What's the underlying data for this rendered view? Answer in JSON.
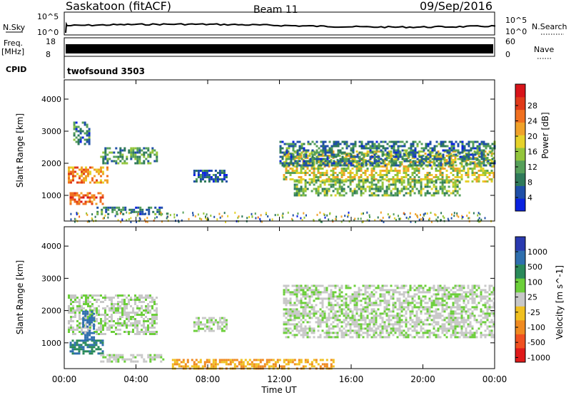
{
  "header": {
    "station": "Saskatoon (fitACF)",
    "beam": "Beam 11",
    "date": "09/Sep/2016"
  },
  "noise_panel": {
    "left_label": "N.Sky",
    "right_label": "N.Search",
    "left_ticks": [
      "10^5",
      "10^0"
    ],
    "right_ticks": [
      "10^5",
      "10^0"
    ]
  },
  "freq_panel": {
    "left_label_1": "Freq.",
    "left_label_2": "[MHz]",
    "right_label": "Nave",
    "left_ticks": [
      "18",
      "8"
    ],
    "right_ticks": [
      "60",
      "0"
    ]
  },
  "cpid_panel": {
    "label": "CPID",
    "program": "twofsound 3503"
  },
  "power_panel": {
    "ylabel": "Slant Range [km]",
    "colorbar_label": "Power [dB]",
    "colorbar_ticks": [
      "28",
      "24",
      "20",
      "16",
      "12",
      "8",
      "4"
    ],
    "colorbar_colors": [
      "#0a22e0",
      "#1f4fa8",
      "#2f7a5a",
      "#56a05a",
      "#93c53c",
      "#e6d22a",
      "#f0a22a",
      "#f07020",
      "#e03a1a",
      "#d8141a"
    ]
  },
  "velocity_panel": {
    "ylabel": "Slant Range [km]",
    "colorbar_label": "Velocity [m s^-1]",
    "colorbar_ticks": [
      "1000",
      "500",
      "100",
      "25",
      "-25",
      "-100",
      "-500",
      "-1000"
    ],
    "colorbar_colors": [
      "#2a3ab0",
      "#2f6fae",
      "#2a8a5a",
      "#6ccf3a",
      "#c8c8c8",
      "#f0c020",
      "#f08a20",
      "#f05020",
      "#e01a1a"
    ]
  },
  "xaxis": {
    "label": "Time UT",
    "ticks": [
      "00:00",
      "04:00",
      "08:00",
      "12:00",
      "16:00",
      "20:00",
      "00:00"
    ]
  },
  "chart_data": {
    "type": "heatmap",
    "x_range_hours": [
      0,
      24
    ],
    "y_range_km": [
      200,
      4600
    ],
    "y_ticks_km": [
      1000,
      2000,
      3000,
      4000
    ],
    "power_regions": [
      {
        "t0": 0.2,
        "t1": 2.4,
        "r0": 1400,
        "r1": 1900,
        "level": 22
      },
      {
        "t0": 0.3,
        "t1": 2.2,
        "r0": 700,
        "r1": 1100,
        "level": 24
      },
      {
        "t0": 2.0,
        "t1": 5.2,
        "r0": 2000,
        "r1": 2500,
        "level": 10
      },
      {
        "t0": 0.5,
        "t1": 1.4,
        "r0": 2600,
        "r1": 3300,
        "level": 8
      },
      {
        "t0": 1.8,
        "t1": 5.5,
        "r0": 400,
        "r1": 650,
        "level": 8
      },
      {
        "t0": 7.2,
        "t1": 9.0,
        "r0": 1400,
        "r1": 1800,
        "level": 6
      },
      {
        "t0": 12.2,
        "t1": 24.0,
        "r0": 1400,
        "r1": 2400,
        "level": 16
      },
      {
        "t0": 12.8,
        "t1": 22.0,
        "r0": 1000,
        "r1": 1500,
        "level": 12
      },
      {
        "t0": 12.0,
        "t1": 24.0,
        "r0": 1900,
        "r1": 2700,
        "level": 8
      }
    ],
    "velocity_regions": [
      {
        "t0": 0.2,
        "t1": 5.2,
        "r0": 1300,
        "r1": 2500,
        "v": 0
      },
      {
        "t0": 0.3,
        "t1": 2.2,
        "r0": 700,
        "r1": 1100,
        "v": 100
      },
      {
        "t0": 1.0,
        "t1": 1.6,
        "r0": 1100,
        "r1": 2000,
        "v": 200
      },
      {
        "t0": 2.0,
        "t1": 5.5,
        "r0": 400,
        "r1": 650,
        "v": 0
      },
      {
        "t0": 7.2,
        "t1": 9.0,
        "r0": 1400,
        "r1": 1800,
        "v": 0
      },
      {
        "t0": 12.2,
        "t1": 24.0,
        "r0": 1200,
        "r1": 2800,
        "v": 0
      },
      {
        "t0": 6.0,
        "t1": 15.0,
        "r0": 200,
        "r1": 500,
        "v": -100
      }
    ]
  }
}
